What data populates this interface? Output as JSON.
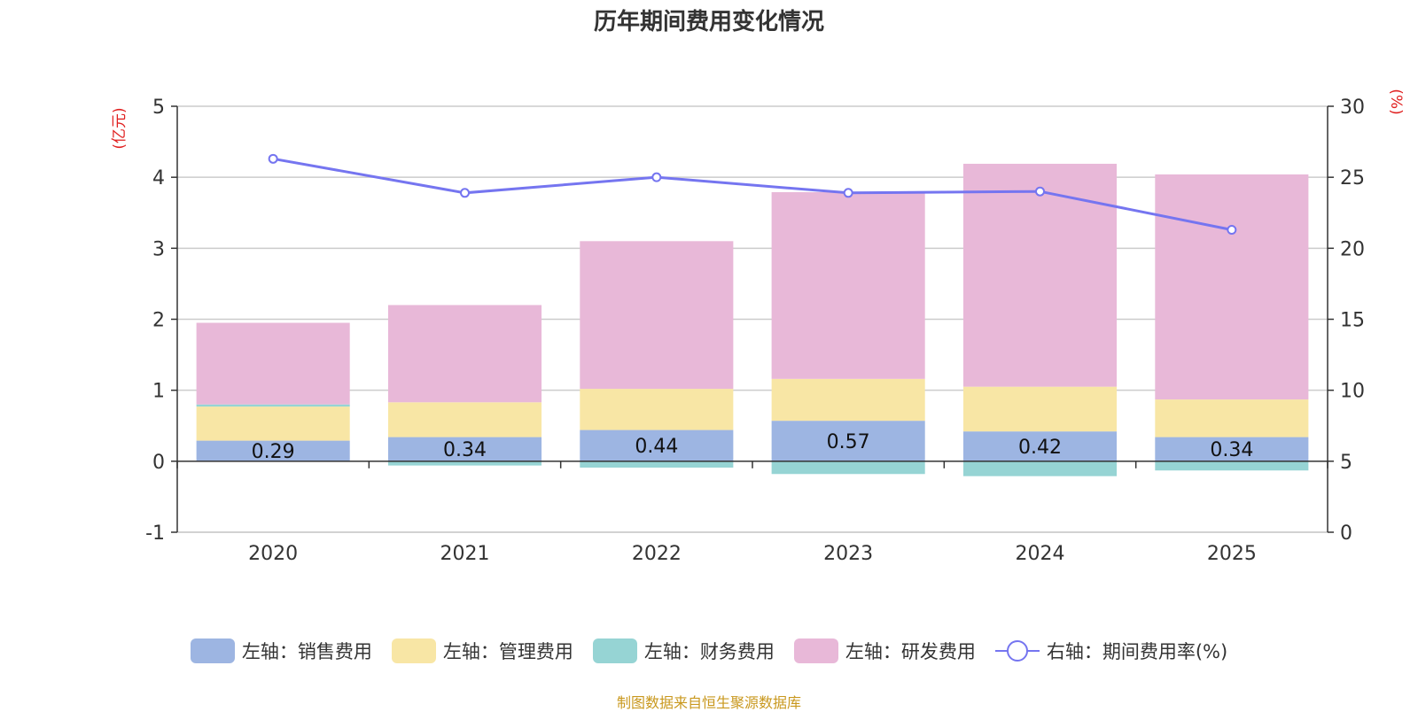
{
  "chart_data": {
    "type": "bar",
    "title": "历年期间费用变化情况",
    "categories": [
      "2020",
      "2021",
      "2022",
      "2023",
      "2024",
      "2025"
    ],
    "left_axis": {
      "unit_label": "(亿元)",
      "ylim": [
        -1,
        5
      ],
      "ticks": [
        -1,
        0,
        1,
        2,
        3,
        4,
        5
      ]
    },
    "right_axis": {
      "unit_label": "(%)",
      "ylim": [
        0,
        30
      ],
      "ticks": [
        0,
        5,
        10,
        15,
        20,
        25,
        30
      ]
    },
    "series": [
      {
        "name": "左轴：销售费用",
        "type": "stacked-bar",
        "axis": "left",
        "color": "#9db5e2",
        "values": [
          0.29,
          0.34,
          0.44,
          0.57,
          0.42,
          0.34
        ],
        "show_labels": true
      },
      {
        "name": "左轴：管理费用",
        "type": "stacked-bar",
        "axis": "left",
        "color": "#f8e6a5",
        "values": [
          0.48,
          0.49,
          0.58,
          0.59,
          0.63,
          0.53
        ]
      },
      {
        "name": "左轴：财务费用",
        "type": "stacked-bar",
        "axis": "left",
        "color": "#96d4d4",
        "values": [
          0.03,
          -0.06,
          -0.09,
          -0.18,
          -0.21,
          -0.13
        ]
      },
      {
        "name": "左轴：研发费用",
        "type": "stacked-bar",
        "axis": "left",
        "color": "#e8b8d8",
        "values": [
          1.15,
          1.37,
          2.08,
          2.63,
          3.14,
          3.17
        ]
      },
      {
        "name": "右轴：期间费用率(%)",
        "type": "line",
        "axis": "right",
        "color": "#7575f0",
        "values": [
          26.3,
          23.9,
          25.0,
          23.9,
          24.0,
          21.3
        ]
      }
    ],
    "grid": true,
    "legend_position": "bottom"
  },
  "footer": {
    "source": "制图数据来自恒生聚源数据库"
  }
}
